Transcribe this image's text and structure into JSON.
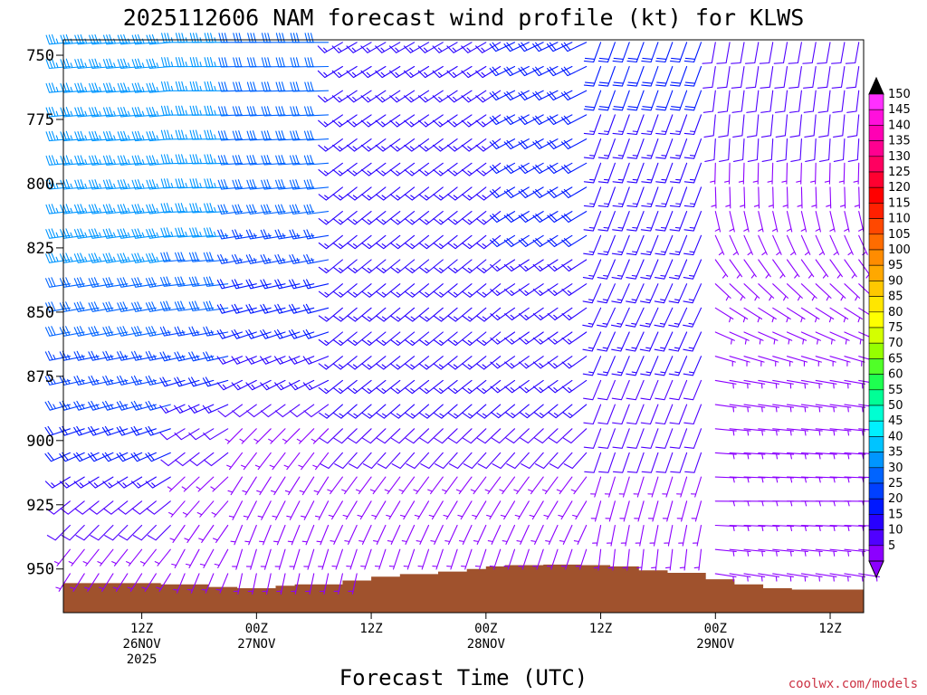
{
  "chart_data": {
    "type": "wind-barb-profile",
    "title": "2025112606 NAM forecast wind profile (kt) for KLWS",
    "xlabel": "Forecast Time (UTC)",
    "ylabel": "",
    "ylim": [
      967,
      744
    ],
    "yticks": [
      750,
      775,
      800,
      825,
      850,
      875,
      900,
      925,
      950
    ],
    "xlim_hours": [
      -2.2,
      81.5
    ],
    "xticks": [
      {
        "hour": 6,
        "line1": "12Z",
        "line2": "26NOV",
        "line3": "2025"
      },
      {
        "hour": 18,
        "line1": "00Z",
        "line2": "27NOV",
        "line3": ""
      },
      {
        "hour": 30,
        "line1": "12Z",
        "line2": "",
        "line3": ""
      },
      {
        "hour": 42,
        "line1": "00Z",
        "line2": "28NOV",
        "line3": ""
      },
      {
        "hour": 54,
        "line1": "12Z",
        "line2": "",
        "line3": ""
      },
      {
        "hour": 66,
        "line1": "00Z",
        "line2": "29NOV",
        "line3": ""
      },
      {
        "hour": 78,
        "line1": "12Z",
        "line2": "",
        "line3": ""
      }
    ],
    "colorbar": {
      "labels": [
        "150",
        "145",
        "140",
        "135",
        "130",
        "125",
        "120",
        "115",
        "110",
        "105",
        "100",
        "95",
        "90",
        "85",
        "80",
        "75",
        "70",
        "65",
        "60",
        "55",
        "50",
        "45",
        "40",
        "35",
        "30",
        "25",
        "20",
        "15",
        "10",
        "5"
      ],
      "colors": [
        "#ff30ff",
        "#ff10dc",
        "#ff00b4",
        "#ff0090",
        "#ff0060",
        "#ff0030",
        "#ff0000",
        "#ff2000",
        "#ff4800",
        "#ff6c00",
        "#ff8c00",
        "#ffa800",
        "#ffc800",
        "#ffe600",
        "#ffff00",
        "#d4ff00",
        "#96ff00",
        "#50ff28",
        "#1eff50",
        "#00ff96",
        "#00ffd2",
        "#00f0ff",
        "#00c4ff",
        "#0096ff",
        "#0064ff",
        "#0040ff",
        "#0018ff",
        "#2800ff",
        "#5000ff",
        "#8c00ff"
      ],
      "top_color": "#000000",
      "bottom_color": "#8c00ff"
    },
    "terrain": {
      "color": "#a0522d",
      "hours": [
        -2.2,
        2,
        8,
        13,
        16,
        20,
        22,
        27,
        30,
        33,
        37,
        40,
        42,
        44,
        48,
        52,
        55,
        58,
        61,
        65,
        68,
        71,
        74,
        78,
        82
      ],
      "pressure": [
        955.5,
        955.5,
        956,
        957,
        957.5,
        956.5,
        956,
        954.5,
        953,
        952,
        951,
        950,
        949,
        948.5,
        948.3,
        948.5,
        949,
        950.5,
        951.5,
        954,
        956,
        957.5,
        958,
        958,
        958.5
      ]
    },
    "wind_profile": [
      {
        "from_hour": -2,
        "to_hour": 10,
        "levels": [
          {
            "p": 745,
            "speed": 35,
            "dir": 265
          },
          {
            "p": 775,
            "speed": 35,
            "dir": 265
          },
          {
            "p": 800,
            "speed": 35,
            "dir": 265
          },
          {
            "p": 825,
            "speed": 35,
            "dir": 262
          },
          {
            "p": 850,
            "speed": 30,
            "dir": 260
          },
          {
            "p": 875,
            "speed": 25,
            "dir": 258
          },
          {
            "p": 900,
            "speed": 20,
            "dir": 250
          },
          {
            "p": 925,
            "speed": 10,
            "dir": 230
          },
          {
            "p": 955,
            "speed": 5,
            "dir": 210
          }
        ]
      },
      {
        "from_hour": 10,
        "to_hour": 16,
        "levels": [
          {
            "p": 745,
            "speed": 35,
            "dir": 270
          },
          {
            "p": 800,
            "speed": 35,
            "dir": 268
          },
          {
            "p": 850,
            "speed": 30,
            "dir": 262
          },
          {
            "p": 875,
            "speed": 20,
            "dir": 255
          },
          {
            "p": 900,
            "speed": 10,
            "dir": 235
          },
          {
            "p": 925,
            "speed": 5,
            "dir": 220
          },
          {
            "p": 955,
            "speed": 5,
            "dir": 200
          }
        ]
      },
      {
        "from_hour": 16,
        "to_hour": 26,
        "levels": [
          {
            "p": 745,
            "speed": 30,
            "dir": 270
          },
          {
            "p": 800,
            "speed": 30,
            "dir": 265
          },
          {
            "p": 825,
            "speed": 25,
            "dir": 260
          },
          {
            "p": 850,
            "speed": 20,
            "dir": 255
          },
          {
            "p": 875,
            "speed": 15,
            "dir": 245
          },
          {
            "p": 900,
            "speed": 5,
            "dir": 220
          },
          {
            "p": 955,
            "speed": 5,
            "dir": 190
          }
        ]
      },
      {
        "from_hour": 26,
        "to_hour": 45,
        "levels": [
          {
            "p": 745,
            "speed": 15,
            "dir": 240
          },
          {
            "p": 775,
            "speed": 15,
            "dir": 235
          },
          {
            "p": 800,
            "speed": 15,
            "dir": 232
          },
          {
            "p": 850,
            "speed": 15,
            "dir": 230
          },
          {
            "p": 875,
            "speed": 15,
            "dir": 232
          },
          {
            "p": 900,
            "speed": 10,
            "dir": 225
          },
          {
            "p": 925,
            "speed": 5,
            "dir": 210
          },
          {
            "p": 955,
            "speed": 5,
            "dir": 190
          }
        ]
      },
      {
        "from_hour": 45,
        "to_hour": 54,
        "levels": [
          {
            "p": 745,
            "speed": 20,
            "dir": 245
          },
          {
            "p": 800,
            "speed": 20,
            "dir": 240
          },
          {
            "p": 850,
            "speed": 15,
            "dir": 235
          },
          {
            "p": 875,
            "speed": 15,
            "dir": 235
          },
          {
            "p": 900,
            "speed": 10,
            "dir": 225
          },
          {
            "p": 925,
            "speed": 5,
            "dir": 210
          },
          {
            "p": 955,
            "speed": 5,
            "dir": 190
          }
        ]
      },
      {
        "from_hour": 54,
        "to_hour": 66,
        "levels": [
          {
            "p": 745,
            "speed": 20,
            "dir": 200
          },
          {
            "p": 800,
            "speed": 15,
            "dir": 200
          },
          {
            "p": 850,
            "speed": 15,
            "dir": 205
          },
          {
            "p": 900,
            "speed": 10,
            "dir": 200
          },
          {
            "p": 925,
            "speed": 5,
            "dir": 195
          },
          {
            "p": 955,
            "speed": 5,
            "dir": 180
          }
        ]
      },
      {
        "from_hour": 66,
        "to_hour": 82,
        "levels": [
          {
            "p": 745,
            "speed": 10,
            "dir": 190
          },
          {
            "p": 775,
            "speed": 10,
            "dir": 185
          },
          {
            "p": 800,
            "speed": 5,
            "dir": 180
          },
          {
            "p": 825,
            "speed": 5,
            "dir": 150
          },
          {
            "p": 850,
            "speed": 5,
            "dir": 120
          },
          {
            "p": 875,
            "speed": 5,
            "dir": 100
          },
          {
            "p": 925,
            "speed": 5,
            "dir": 90
          },
          {
            "p": 955,
            "speed": 5,
            "dir": 100
          }
        ]
      }
    ]
  },
  "credit": "coolwx.com/models",
  "credit_color": "#cc3344"
}
